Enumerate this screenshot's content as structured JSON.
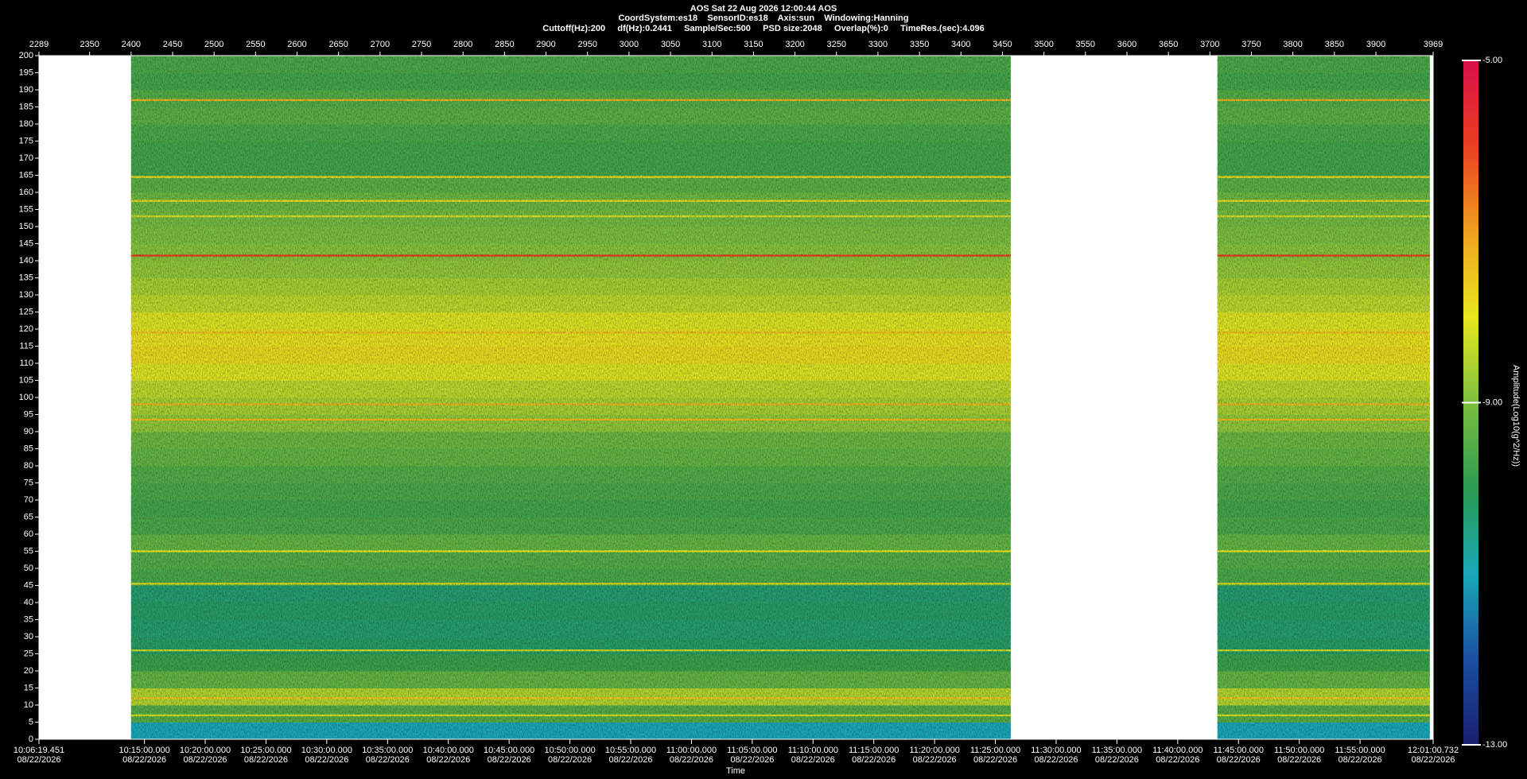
{
  "chart_data": {
    "type": "spectrogram",
    "title": "AOS  Sat 22 Aug 2026 12:00:44  AOS",
    "subtitle": [
      "CoordSystem:es18    SensorID:es18    Axis:sun    Windowing:Hanning",
      "Cuttoff(Hz):200     df(Hz):0.2441     Sample/Sec:500     PSD size:2048     Overlap(%):0     TimeRes.(sec):4.096"
    ],
    "xlabel": "Time",
    "xlim": [
      2289,
      3969
    ],
    "xticks": [
      2289,
      2350,
      2400,
      2450,
      2500,
      2550,
      2600,
      2650,
      2700,
      2750,
      2800,
      2850,
      2900,
      2950,
      3000,
      3050,
      3100,
      3150,
      3200,
      3250,
      3300,
      3350,
      3400,
      3450,
      3500,
      3550,
      3600,
      3650,
      3700,
      3750,
      3800,
      3850,
      3900,
      3969
    ],
    "time_ticks": [
      {
        "value": 2289,
        "label": "10:06:19.451",
        "date": "08/22/2026"
      },
      {
        "value": 2416.09,
        "label": "10:15:00.000",
        "date": "08/22/2026"
      },
      {
        "value": 2489.33,
        "label": "10:20:00.000",
        "date": "08/22/2026"
      },
      {
        "value": 2562.57,
        "label": "10:25:00.000",
        "date": "08/22/2026"
      },
      {
        "value": 2635.81,
        "label": "10:30:00.000",
        "date": "08/22/2026"
      },
      {
        "value": 2709.06,
        "label": "10:35:00.000",
        "date": "08/22/2026"
      },
      {
        "value": 2782.3,
        "label": "10:40:00.000",
        "date": "08/22/2026"
      },
      {
        "value": 2855.54,
        "label": "10:45:00.000",
        "date": "08/22/2026"
      },
      {
        "value": 2928.78,
        "label": "10:50:00.000",
        "date": "08/22/2026"
      },
      {
        "value": 3002.02,
        "label": "10:55:00.000",
        "date": "08/22/2026"
      },
      {
        "value": 3075.26,
        "label": "11:00:00.000",
        "date": "08/22/2026"
      },
      {
        "value": 3148.5,
        "label": "11:05:00.000",
        "date": "08/22/2026"
      },
      {
        "value": 3221.75,
        "label": "11:10:00.000",
        "date": "08/22/2026"
      },
      {
        "value": 3294.99,
        "label": "11:15:00.000",
        "date": "08/22/2026"
      },
      {
        "value": 3368.23,
        "label": "11:20:00.000",
        "date": "08/22/2026"
      },
      {
        "value": 3441.47,
        "label": "11:25:00.000",
        "date": "08/22/2026"
      },
      {
        "value": 3514.71,
        "label": "11:30:00.000",
        "date": "08/22/2026"
      },
      {
        "value": 3587.95,
        "label": "11:35:00.000",
        "date": "08/22/2026"
      },
      {
        "value": 3661.19,
        "label": "11:40:00.000",
        "date": "08/22/2026"
      },
      {
        "value": 3734.44,
        "label": "11:45:00.000",
        "date": "08/22/2026"
      },
      {
        "value": 3807.68,
        "label": "11:50:00.000",
        "date": "08/22/2026"
      },
      {
        "value": 3880.92,
        "label": "11:55:00.000",
        "date": "08/22/2026"
      },
      {
        "value": 3969,
        "label": "12:01:00.732",
        "date": "08/22/2026"
      }
    ],
    "ylim": [
      0,
      200
    ],
    "yticks": [
      0,
      5,
      10,
      15,
      20,
      25,
      30,
      35,
      40,
      45,
      50,
      55,
      60,
      65,
      70,
      75,
      80,
      85,
      90,
      95,
      100,
      105,
      110,
      115,
      120,
      125,
      130,
      135,
      140,
      145,
      150,
      155,
      160,
      165,
      170,
      175,
      180,
      185,
      190,
      195,
      200
    ],
    "segments": [
      [
        2400,
        3460
      ],
      [
        3709,
        3965
      ]
    ],
    "freq_bins": [
      0,
      5,
      10,
      15,
      20,
      25,
      30,
      35,
      40,
      45,
      50,
      55,
      60,
      65,
      70,
      75,
      80,
      85,
      90,
      95,
      100,
      105,
      110,
      115,
      120,
      125,
      130,
      135,
      140,
      145,
      150,
      155,
      160,
      165,
      170,
      175,
      180,
      185,
      190,
      195,
      200
    ],
    "values": [
      -11,
      -9.5,
      -8.5,
      -9.3,
      -9.8,
      -10.2,
      -10.3,
      -10.2,
      -10.3,
      -9.6,
      -9.5,
      -9.3,
      -9.6,
      -9.7,
      -9.6,
      -9.5,
      -9.3,
      -9.2,
      -8.8,
      -8.6,
      -8.4,
      -8.1,
      -7.8,
      -7.9,
      -8.1,
      -8.4,
      -8.6,
      -8.8,
      -8.9,
      -9.0,
      -9.1,
      -9.2,
      -9.4,
      -9.7,
      -9.7,
      -9.6,
      -9.4,
      -9.5,
      -9.7,
      -9.6
    ],
    "lines": {
      "freqs": [
        141.5,
        187,
        98,
        93.5,
        119,
        157.5,
        164.5,
        153,
        55,
        45.5,
        26,
        12,
        7
      ],
      "values": [
        -6.0,
        -7.3,
        -7.3,
        -7.4,
        -7.5,
        -7.8,
        -7.8,
        -8.2,
        -8.0,
        -8.2,
        -8.3,
        -7.6,
        -8.2
      ]
    },
    "colorbar": {
      "label": "Amplitude(Log10(g^2/Hz))",
      "lim": [
        -13,
        -5
      ],
      "ticks": [
        {
          "value": -5,
          "label": "-5.00"
        },
        {
          "value": -9,
          "label": "-9.00"
        },
        {
          "value": -13,
          "label": "-13.00"
        }
      ],
      "colormap": [
        "#1a1f6e",
        "#1a4fa0",
        "#1aa8b8",
        "#2a9a50",
        "#7cc040",
        "#e8e820",
        "#f0a020",
        "#e84020",
        "#d8104a"
      ]
    },
    "gap_color": "#ffffff"
  }
}
